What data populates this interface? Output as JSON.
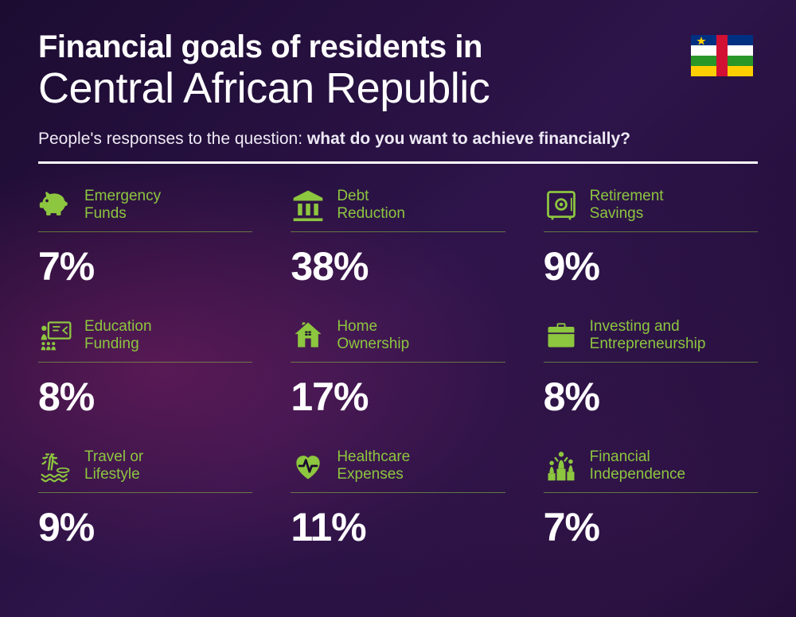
{
  "type": "infographic",
  "background_color": "#1a0b2e",
  "accent_color": "#8dc63f",
  "text_color": "#ffffff",
  "title_fontsize": 40,
  "subtitle_fontsize": 54,
  "question_fontsize": 21,
  "label_fontsize": 19,
  "value_fontsize": 50,
  "title": {
    "line1": "Financial goals of residents in",
    "line2": "Central African Republic"
  },
  "subtitle": {
    "prefix": "People's responses to the question: ",
    "bold": "what do you want to achieve financially?"
  },
  "flag": {
    "country": "Central African Republic",
    "stripes": [
      "#003082",
      "#ffffff",
      "#289728",
      "#ffce00"
    ],
    "vertical_band": "#d21034",
    "star_color": "#ffce00"
  },
  "items": [
    {
      "icon": "piggy-bank",
      "label": "Emergency\nFunds",
      "value": "7%"
    },
    {
      "icon": "bank",
      "label": "Debt\nReduction",
      "value": "38%"
    },
    {
      "icon": "safe",
      "label": "Retirement\nSavings",
      "value": "9%"
    },
    {
      "icon": "education",
      "label": "Education\nFunding",
      "value": "8%"
    },
    {
      "icon": "home",
      "label": "Home\nOwnership",
      "value": "17%"
    },
    {
      "icon": "briefcase",
      "label": "Investing and\nEntrepreneurship",
      "value": "8%"
    },
    {
      "icon": "travel",
      "label": "Travel or\nLifestyle",
      "value": "9%"
    },
    {
      "icon": "healthcare",
      "label": "Healthcare\nExpenses",
      "value": "11%"
    },
    {
      "icon": "independence",
      "label": "Financial\nIndependence",
      "value": "7%"
    }
  ]
}
